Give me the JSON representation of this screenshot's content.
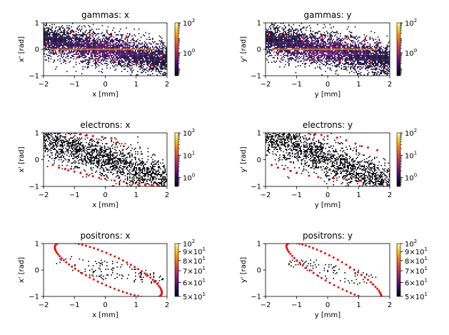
{
  "figure_title": "",
  "colormap": [
    "#000004",
    "#1b0c41",
    "#4a0c6b",
    "#781c6d",
    "#a52c60",
    "#cf4446",
    "#ed6925",
    "#fb9b06",
    "#f7d13d",
    "#fcffa4"
  ],
  "marker_color": "#ff0000",
  "chart_data": [
    {
      "id": "gx",
      "type": "heatmap",
      "title": "gammas: x",
      "xlabel": "x [mm]",
      "ylabel": "x' [rad]",
      "xlim": [
        -2,
        2
      ],
      "ylim": [
        -1,
        1
      ],
      "xticks": [
        -2,
        -1,
        0,
        1,
        2
      ],
      "yticks": [
        -1,
        0,
        1
      ],
      "xtick_labels": [
        "−2",
        "−1",
        "0",
        "1",
        "2"
      ],
      "ytick_labels": [
        "−1",
        "0",
        "1"
      ],
      "density": "dense",
      "slope": -0.2,
      "spread": 0.55,
      "seed": 11,
      "cbar": {
        "scale": "log",
        "min": 0.03,
        "max": 100,
        "ticks": [
          {
            "v": 100,
            "label": "10",
            "exp": "2"
          },
          {
            "v": 1,
            "label": "10",
            "exp": "0"
          }
        ]
      },
      "markers": [
        [
          -1.1,
          0.65
        ],
        [
          -0.5,
          0.55
        ],
        [
          0.2,
          0.5
        ],
        [
          0.7,
          0.45
        ],
        [
          -1.6,
          -0.15
        ],
        [
          -0.9,
          -0.3
        ],
        [
          -0.3,
          -0.35
        ],
        [
          0.3,
          -0.45
        ],
        [
          1.0,
          -0.55
        ],
        [
          1.5,
          -0.6
        ],
        [
          1.8,
          -0.3
        ],
        [
          -1.9,
          0.2
        ]
      ],
      "core_line": {
        "x": [
          -1.8,
          1.6
        ],
        "y": [
          0.0,
          0.0
        ]
      }
    },
    {
      "id": "gy",
      "type": "heatmap",
      "title": "gammas: y",
      "xlabel": "y [mm]",
      "ylabel": "y' [rad]",
      "xlim": [
        -2,
        2
      ],
      "ylim": [
        -1,
        1
      ],
      "xticks": [
        -2,
        -1,
        0,
        1,
        2
      ],
      "yticks": [
        -1,
        0,
        1
      ],
      "xtick_labels": [
        "−2",
        "−1",
        "0",
        "1",
        "2"
      ],
      "ytick_labels": [
        "−1",
        "0",
        "1"
      ],
      "density": "dense",
      "slope": -0.2,
      "spread": 0.55,
      "seed": 23,
      "cbar": {
        "scale": "log",
        "min": 0.03,
        "max": 100,
        "ticks": [
          {
            "v": 100,
            "label": "10",
            "exp": "2"
          },
          {
            "v": 1,
            "label": "10",
            "exp": "0"
          }
        ]
      },
      "markers": [
        [
          -1.9,
          0.6
        ],
        [
          -1.4,
          0.55
        ],
        [
          -0.8,
          0.45
        ],
        [
          -0.2,
          0.5
        ],
        [
          0.6,
          0.45
        ],
        [
          1.2,
          0.35
        ],
        [
          1.7,
          0.25
        ],
        [
          -1.6,
          -0.2
        ],
        [
          -0.5,
          -0.4
        ],
        [
          0.4,
          -0.45
        ],
        [
          1.4,
          -0.5
        ]
      ],
      "core_line": {
        "x": [
          -1.8,
          1.6
        ],
        "y": [
          0.0,
          0.0
        ]
      }
    },
    {
      "id": "ex",
      "type": "heatmap",
      "title": "electrons: x",
      "xlabel": "x [mm]",
      "ylabel": "x' [rad]",
      "xlim": [
        -2,
        2
      ],
      "ylim": [
        -1,
        1
      ],
      "xticks": [
        -2,
        -1,
        0,
        1,
        2
      ],
      "yticks": [
        -1,
        0,
        1
      ],
      "xtick_labels": [
        "−2",
        "−1",
        "0",
        "1",
        "2"
      ],
      "ytick_labels": [
        "−1",
        "0",
        "1"
      ],
      "density": "medium",
      "slope": -0.4,
      "spread": 0.6,
      "seed": 37,
      "cbar": {
        "scale": "log",
        "min": 0.4,
        "max": 100,
        "ticks": [
          {
            "v": 100,
            "label": "10",
            "exp": "2"
          },
          {
            "v": 10,
            "label": "10",
            "exp": "1"
          },
          {
            "v": 1,
            "label": "10",
            "exp": "0"
          }
        ]
      },
      "markers": [
        [
          -1.0,
          1.0
        ],
        [
          -0.8,
          0.95
        ],
        [
          -0.6,
          0.92
        ],
        [
          -0.4,
          0.88
        ],
        [
          -0.1,
          0.85
        ],
        [
          0.2,
          0.8
        ],
        [
          0.4,
          0.65
        ],
        [
          0.6,
          0.5
        ],
        [
          -1.7,
          -0.2
        ],
        [
          -1.5,
          -0.3
        ],
        [
          -1.3,
          -0.35
        ],
        [
          -1.2,
          -0.4
        ],
        [
          -1.0,
          -0.45
        ],
        [
          -0.8,
          -0.5
        ],
        [
          -0.6,
          -0.55
        ],
        [
          -0.4,
          -0.62
        ],
        [
          -0.2,
          -0.68
        ],
        [
          0.0,
          -0.72
        ],
        [
          0.3,
          -0.78
        ],
        [
          0.6,
          -0.82
        ],
        [
          0.9,
          -0.86
        ],
        [
          1.1,
          -0.9
        ],
        [
          1.3,
          -0.92
        ],
        [
          1.5,
          -0.95
        ],
        [
          1.7,
          -0.98
        ]
      ],
      "core_line": null
    },
    {
      "id": "ey",
      "type": "heatmap",
      "title": "electrons: y",
      "xlabel": "y [mm]",
      "ylabel": "y' [rad]",
      "xlim": [
        -2,
        2
      ],
      "ylim": [
        -1,
        1
      ],
      "xticks": [
        -2,
        -1,
        0,
        1,
        2
      ],
      "yticks": [
        -1,
        0,
        1
      ],
      "xtick_labels": [
        "−2",
        "−1",
        "0",
        "1",
        "2"
      ],
      "ytick_labels": [
        "−1",
        "0",
        "1"
      ],
      "density": "medium",
      "slope": -0.45,
      "spread": 0.6,
      "seed": 41,
      "cbar": {
        "scale": "log",
        "min": 0.4,
        "max": 100,
        "ticks": [
          {
            "v": 100,
            "label": "10",
            "exp": "2"
          },
          {
            "v": 10,
            "label": "10",
            "exp": "1"
          },
          {
            "v": 1,
            "label": "10",
            "exp": "0"
          }
        ]
      },
      "markers": [
        [
          -0.9,
          1.0
        ],
        [
          -0.6,
          0.98
        ],
        [
          -0.4,
          0.95
        ],
        [
          -0.2,
          0.92
        ],
        [
          0.0,
          0.88
        ],
        [
          0.3,
          0.82
        ],
        [
          0.6,
          0.72
        ],
        [
          0.9,
          0.6
        ],
        [
          1.1,
          0.5
        ],
        [
          1.3,
          0.45
        ],
        [
          1.6,
          0.35
        ],
        [
          -1.8,
          -0.2
        ],
        [
          -1.6,
          -0.3
        ],
        [
          -1.4,
          -0.35
        ],
        [
          -1.2,
          -0.42
        ],
        [
          -1.0,
          -0.5
        ],
        [
          -0.6,
          -0.6
        ],
        [
          -0.3,
          -0.65
        ],
        [
          0.2,
          -0.7
        ],
        [
          0.6,
          -0.75
        ],
        [
          1.0,
          -0.8
        ]
      ],
      "core_line": null
    },
    {
      "id": "px",
      "type": "heatmap",
      "title": "positrons: x",
      "xlabel": "x [mm]",
      "ylabel": "x' [rad]",
      "xlim": [
        -2,
        2
      ],
      "ylim": [
        -1,
        1
      ],
      "xticks": [
        -2,
        -1,
        0,
        1,
        2
      ],
      "yticks": [
        -1,
        0,
        1
      ],
      "xtick_labels": [
        "−2",
        "−1",
        "0",
        "1",
        "2"
      ],
      "ytick_labels": [
        "−1",
        "0",
        "1"
      ],
      "density": "sparse",
      "slope": -0.5,
      "spread": 0.6,
      "seed": 53,
      "cbar": {
        "scale": "log",
        "min": 50,
        "max": 100,
        "ticks": [
          {
            "v": 100,
            "label": "10",
            "exp": "2"
          },
          {
            "v": 90,
            "label": "9×10",
            "exp": "1"
          },
          {
            "v": 80,
            "label": "8×10",
            "exp": "1"
          },
          {
            "v": 70,
            "label": "7×10",
            "exp": "1"
          },
          {
            "v": 60,
            "label": "6×10",
            "exp": "1"
          },
          {
            "v": 50,
            "label": "5×10",
            "exp": "1"
          }
        ]
      },
      "ellipse": {
        "cx": 0.1,
        "cy": 0.0,
        "rx": 1.9,
        "ry": 0.35,
        "angle": -25,
        "n": 80
      },
      "markers": [],
      "core_line": null
    },
    {
      "id": "py",
      "type": "heatmap",
      "title": "positrons: y",
      "xlabel": "y [mm]",
      "ylabel": "y' [rad]",
      "xlim": [
        -2,
        2
      ],
      "ylim": [
        -1,
        1
      ],
      "xticks": [
        -2,
        -1,
        0,
        1,
        2
      ],
      "yticks": [
        -1,
        0,
        1
      ],
      "xtick_labels": [
        "−2",
        "−1",
        "0",
        "1",
        "2"
      ],
      "ytick_labels": [
        "−1",
        "0",
        "1"
      ],
      "density": "sparse",
      "slope": -0.55,
      "spread": 0.55,
      "seed": 67,
      "cbar": {
        "scale": "log",
        "min": 50,
        "max": 100,
        "ticks": [
          {
            "v": 100,
            "label": "10",
            "exp": "2"
          },
          {
            "v": 90,
            "label": "9×10",
            "exp": "1"
          },
          {
            "v": 80,
            "label": "8×10",
            "exp": "1"
          },
          {
            "v": 70,
            "label": "7×10",
            "exp": "1"
          },
          {
            "v": 60,
            "label": "6×10",
            "exp": "1"
          },
          {
            "v": 50,
            "label": "5×10",
            "exp": "1"
          }
        ]
      },
      "ellipse": {
        "cx": 0.2,
        "cy": -0.05,
        "rx": 1.75,
        "ry": 0.28,
        "angle": -30,
        "n": 70
      },
      "markers": [],
      "core_line": null
    }
  ]
}
